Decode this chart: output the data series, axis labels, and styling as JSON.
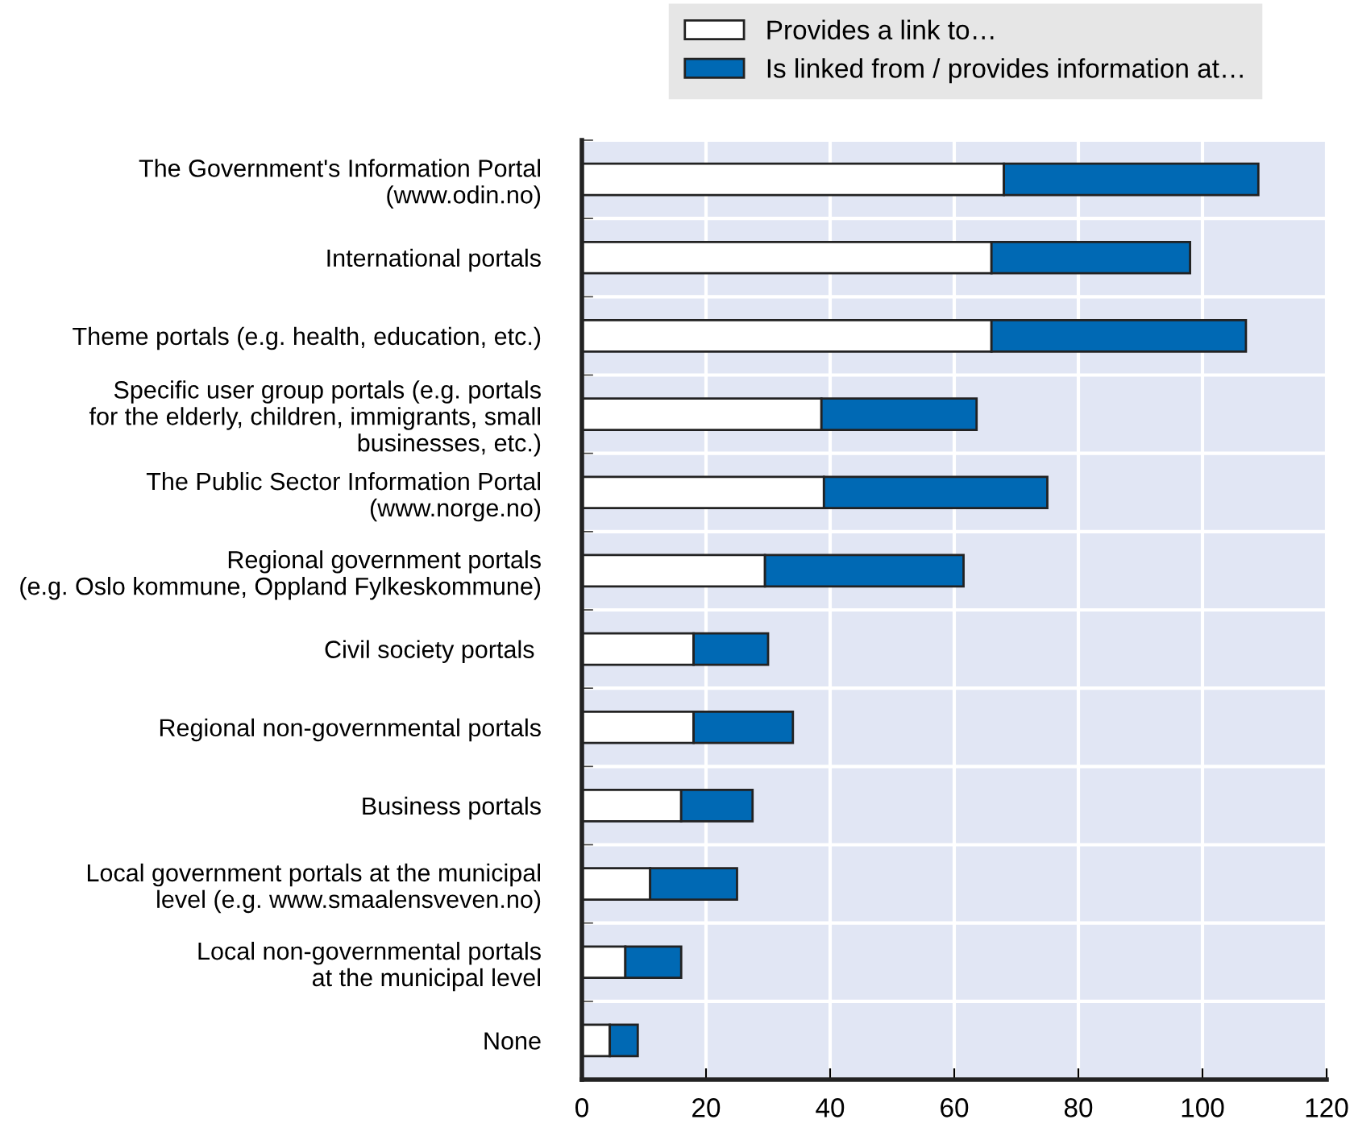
{
  "chart_data": {
    "type": "bar",
    "orientation": "horizontal",
    "stacked": true,
    "categories": [
      "The Government's Information Portal\n(www.odin.no)",
      "International portals",
      "Theme portals (e.g. health, education, etc.)",
      "Specific user group portals (e.g. portals\nfor the elderly, children, immigrants, small\nbusinesses, etc.)",
      "The Public Sector Information Portal\n(www.norge.no)",
      "Regional government portals\n(e.g. Oslo kommune, Oppland Fylkeskommune)",
      "Civil society portals ",
      "Regional non-governmental portals",
      "Business portals",
      "Local government portals at the municipal\nlevel (e.g. www.smaalensveven.no)",
      "Local non-governmental portals\nat the municipal level",
      "None"
    ],
    "series": [
      {
        "name": "Provides a link to…",
        "color": "#ffffff",
        "values": [
          68,
          66,
          66,
          38.6,
          39,
          29.5,
          18,
          18,
          16,
          11,
          7,
          4.5
        ]
      },
      {
        "name": "Is linked from / provides information at…",
        "color": "#0069b4",
        "values": [
          41,
          32,
          41,
          25,
          36,
          32,
          12,
          16,
          11.5,
          14,
          9,
          4.5
        ]
      }
    ],
    "xlim": [
      0,
      120
    ],
    "xticks": [
      0,
      20,
      40,
      60,
      80,
      100,
      120
    ],
    "grid": "x",
    "legend": "top"
  }
}
